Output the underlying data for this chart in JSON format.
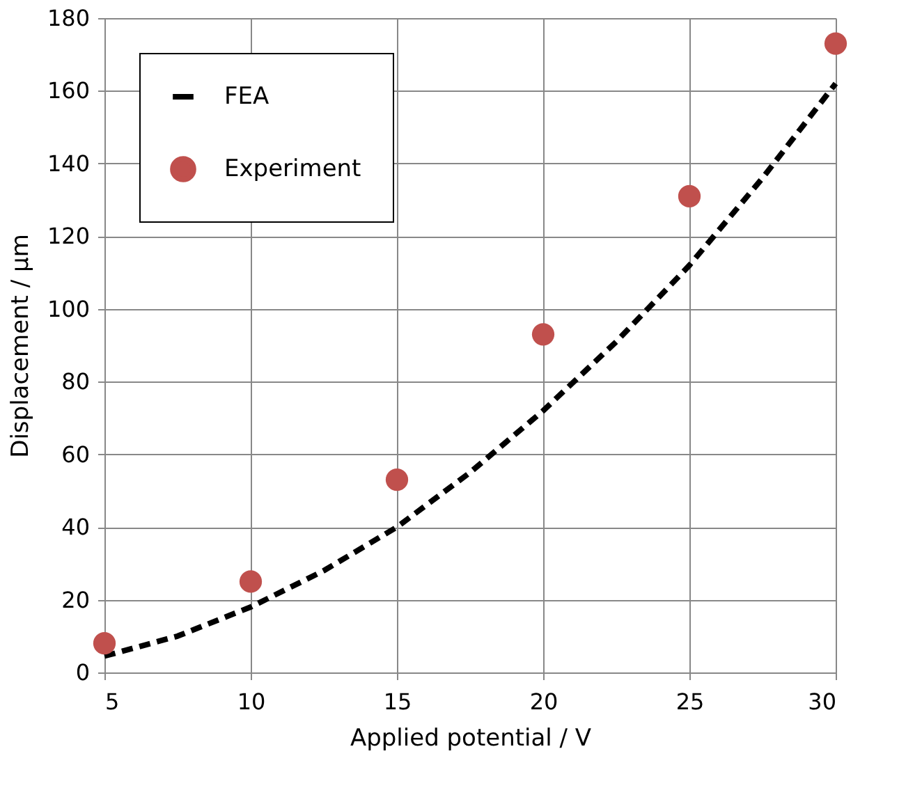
{
  "chart_data": {
    "type": "line",
    "xlabel": "Applied potential / V",
    "ylabel": "Displacement  / µm",
    "xlim": [
      5,
      30
    ],
    "xticks": [
      5,
      10,
      15,
      20,
      25,
      30
    ],
    "ylim": [
      0,
      180
    ],
    "yticks": [
      0,
      20,
      40,
      60,
      80,
      100,
      120,
      140,
      160,
      180
    ],
    "grid": true,
    "legend": "top left",
    "series": [
      {
        "name": "FEA",
        "color": "#000000",
        "line_style": "dashed",
        "marker": "none",
        "x": [
          5,
          7.5,
          10,
          12.5,
          15,
          17.5,
          20,
          22.5,
          25,
          27.5,
          30
        ],
        "values": [
          4.5,
          10,
          18,
          28,
          40,
          55,
          72,
          91,
          112,
          136,
          162
        ]
      },
      {
        "name": "Experiment",
        "type": "scatter",
        "color": "#c0504d",
        "marker": "circle",
        "x": [
          5,
          10,
          15,
          20,
          25,
          30
        ],
        "values": [
          8,
          25,
          53,
          93,
          131,
          173
        ]
      }
    ]
  }
}
